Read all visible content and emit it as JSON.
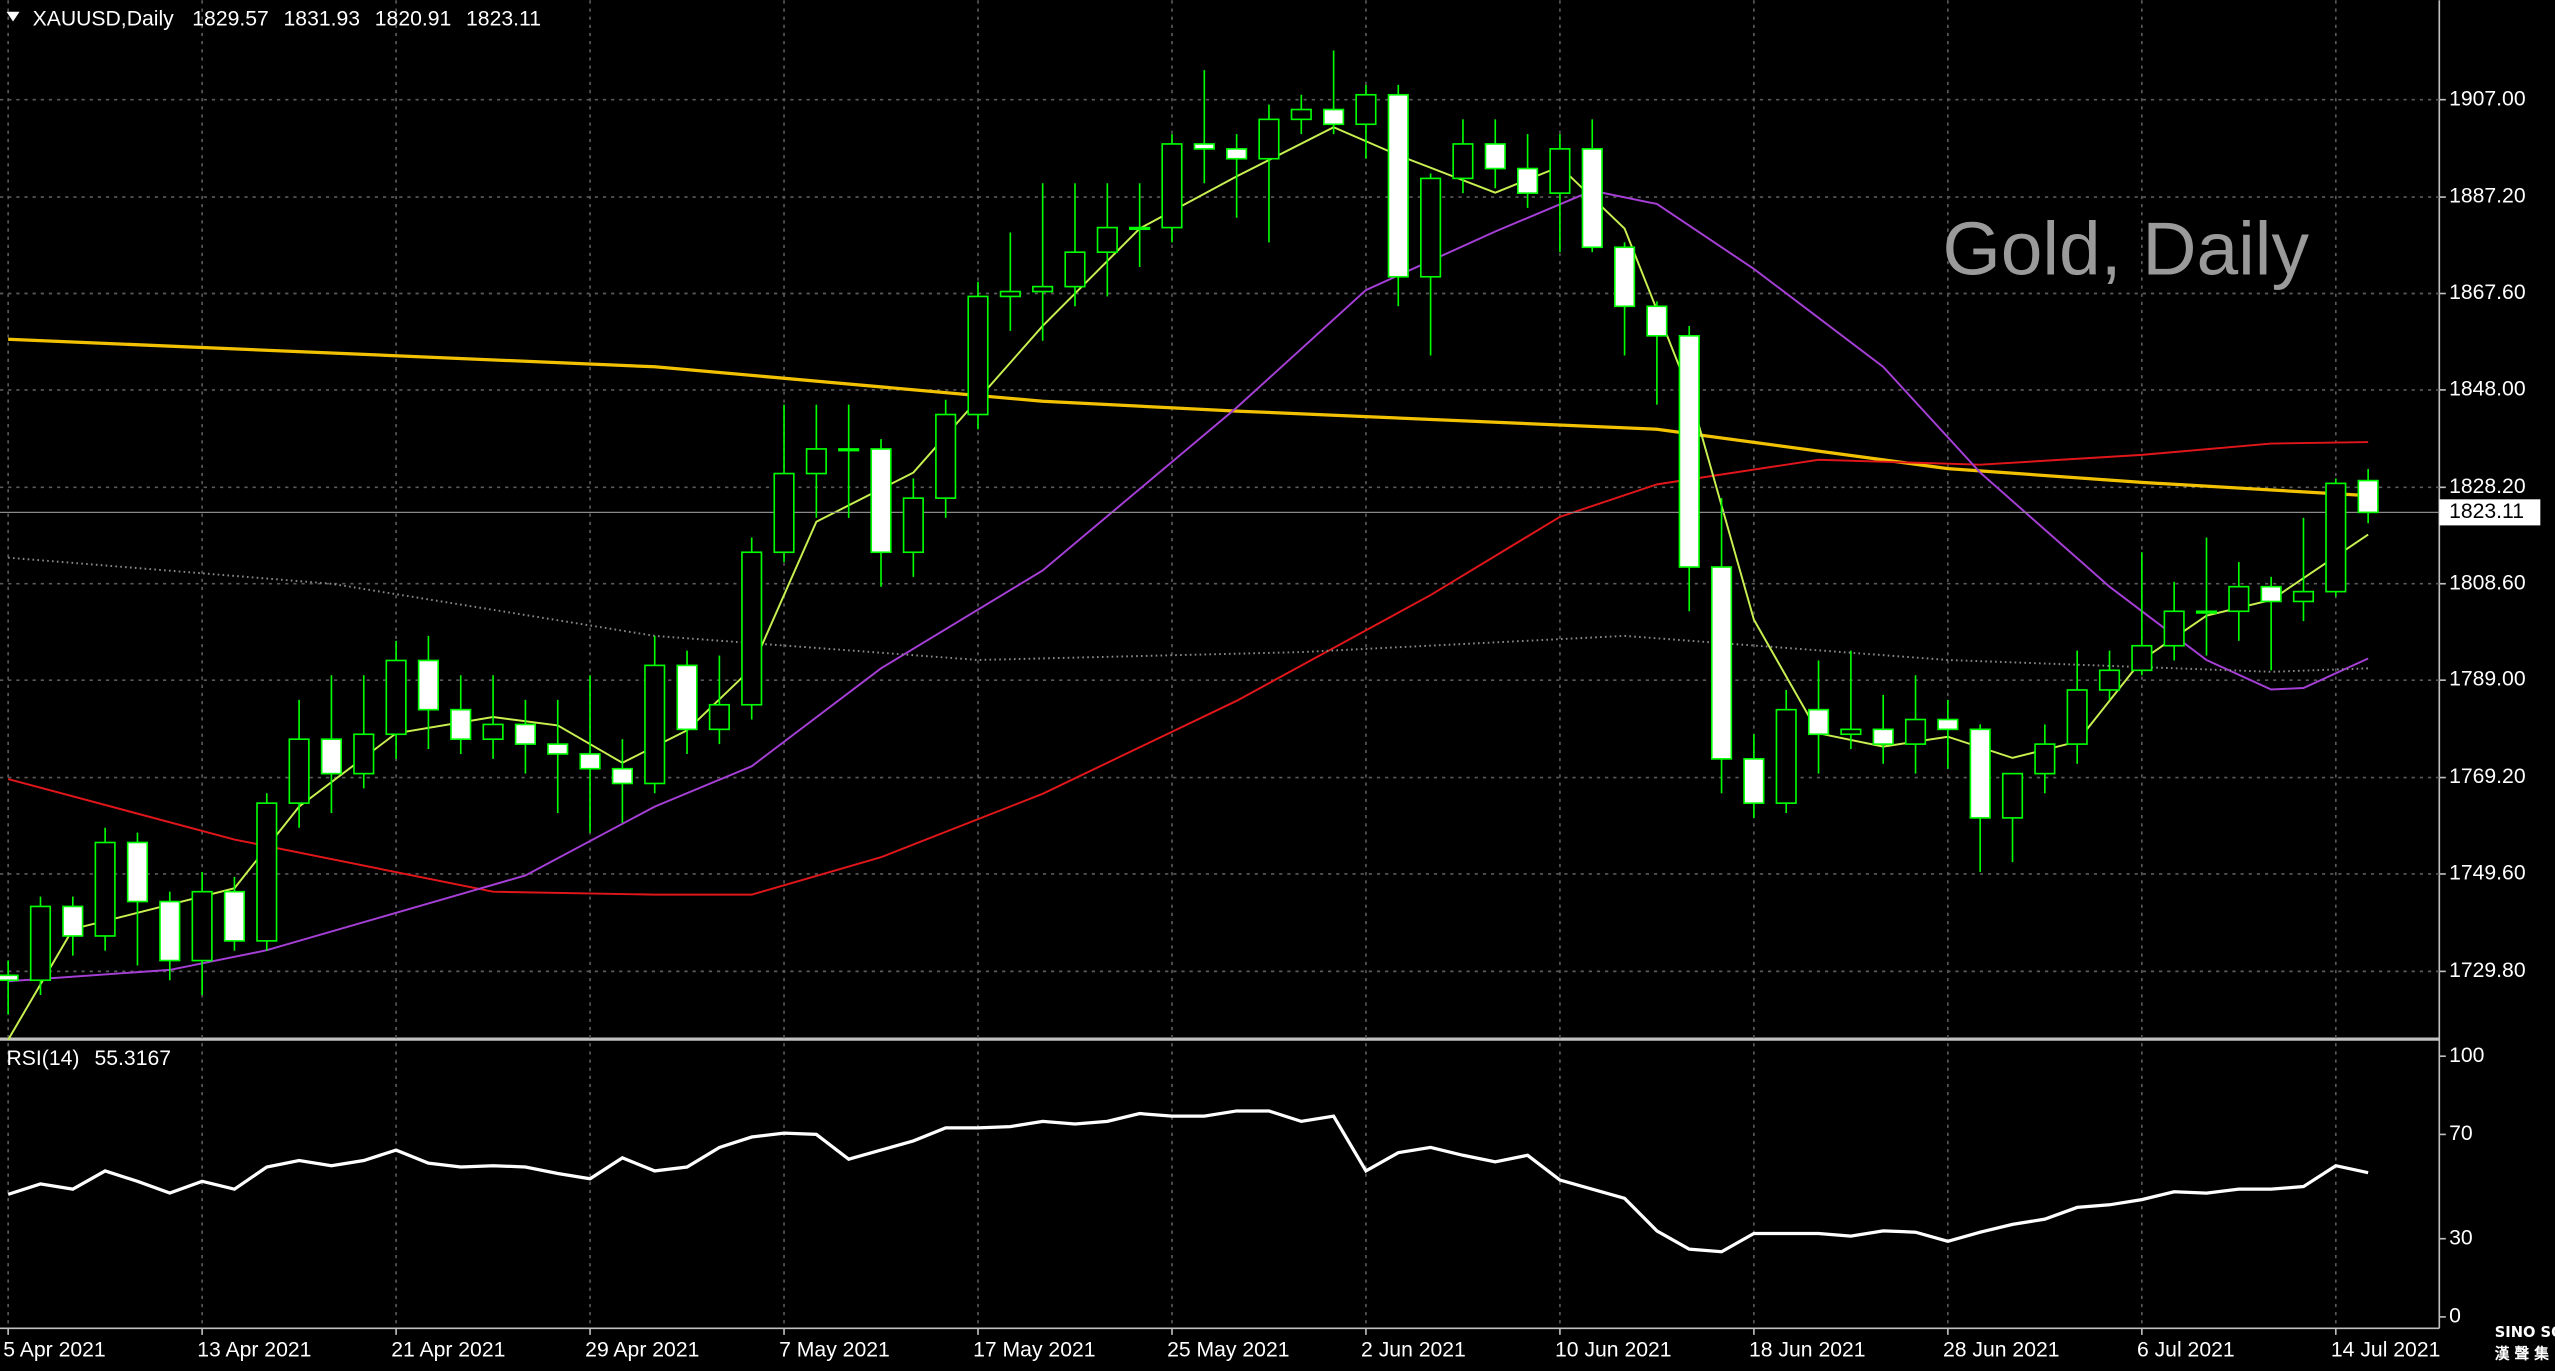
{
  "chart_data": [
    {
      "type": "candlestick",
      "symbol": "XAUUSD,Daily",
      "watermark": "Gold, Daily",
      "logo": "SINO SOUND",
      "logo_sub": "漢 聲 集 團",
      "categories": [
        "5 Apr 2021",
        null,
        null,
        null,
        null,
        null,
        "13 Apr 2021",
        null,
        null,
        null,
        null,
        null,
        "21 Apr 2021",
        null,
        null,
        null,
        null,
        null,
        "29 Apr 2021",
        null,
        null,
        null,
        null,
        null,
        "7 May 2021",
        null,
        null,
        null,
        null,
        null,
        "17 May 2021",
        null,
        null,
        null,
        null,
        null,
        "25 May 2021",
        null,
        null,
        null,
        null,
        null,
        "2 Jun 2021",
        null,
        null,
        null,
        null,
        null,
        "10 Jun 2021",
        null,
        null,
        null,
        null,
        null,
        "18 Jun 2021",
        null,
        null,
        null,
        null,
        null,
        "28 Jun 2021",
        null,
        null,
        null,
        null,
        null,
        "6 Jul 2021",
        null,
        null,
        null,
        null,
        null,
        "14 Jul 2021",
        null
      ],
      "open": [
        1729,
        1728,
        1743,
        1737,
        1756,
        1744,
        1732,
        1746,
        1736,
        1764,
        1777,
        1770,
        1778,
        1793,
        1783,
        1777,
        1780,
        1776,
        1774,
        1771,
        1768,
        1792,
        1779,
        1784,
        1815,
        1831,
        1836,
        1836,
        1815,
        1826,
        1843,
        1867,
        1868,
        1869,
        1876,
        1881,
        1881,
        1898,
        1897,
        1895,
        1903,
        1905,
        1902,
        1908,
        1871,
        1891,
        1898,
        1893,
        1888,
        1897,
        1877,
        1865,
        1859,
        1812,
        1773,
        1764,
        1783,
        1778,
        1779,
        1776,
        1781,
        1779,
        1761,
        1770,
        1776,
        1787,
        1791,
        1796,
        1803,
        1803,
        1808,
        1805,
        1807,
        1829.57
      ],
      "high": [
        1732,
        1745,
        1745,
        1759,
        1758,
        1746,
        1750,
        1749,
        1766,
        1785,
        1790,
        1790,
        1797,
        1798,
        1790,
        1790,
        1785,
        1785,
        1790,
        1777,
        1798,
        1795,
        1794,
        1818,
        1845,
        1845,
        1845,
        1838,
        1830,
        1846,
        1870,
        1880,
        1890,
        1890,
        1890,
        1890,
        1900,
        1913,
        1900,
        1906,
        1908,
        1917,
        1910,
        1910,
        1892,
        1903,
        1903,
        1900,
        1900,
        1903,
        1878,
        1866,
        1861,
        1826,
        1778,
        1787,
        1793,
        1795,
        1786,
        1790,
        1785,
        1780,
        1770,
        1780,
        1795,
        1795,
        1815,
        1809,
        1818,
        1813,
        1810,
        1822,
        1830,
        1831.93
      ],
      "low": [
        1721,
        1725,
        1733,
        1734,
        1731,
        1728,
        1725,
        1734,
        1734,
        1759,
        1762,
        1767,
        1773,
        1775,
        1774,
        1773,
        1770,
        1762,
        1758,
        1760,
        1766,
        1774,
        1776,
        1781,
        1813,
        1822,
        1822,
        1808,
        1810,
        1822,
        1840,
        1860,
        1858,
        1865,
        1867,
        1873,
        1878,
        1890,
        1883,
        1878,
        1900,
        1900,
        1895,
        1865,
        1855,
        1888,
        1889,
        1885,
        1876,
        1876,
        1855,
        1845,
        1803,
        1766,
        1761,
        1762,
        1770,
        1775,
        1772,
        1770,
        1771,
        1750,
        1752,
        1766,
        1772,
        1785,
        1790,
        1793,
        1794,
        1797,
        1791,
        1801,
        1806,
        1820.91
      ],
      "close": [
        1728,
        1743,
        1737,
        1756,
        1744,
        1732,
        1746,
        1736,
        1764,
        1777,
        1770,
        1778,
        1793,
        1783,
        1777,
        1780,
        1776,
        1774,
        1771,
        1768,
        1792,
        1779,
        1784,
        1815,
        1831,
        1836,
        1836,
        1815,
        1826,
        1843,
        1867,
        1868,
        1869,
        1876,
        1881,
        1881,
        1898,
        1897,
        1895,
        1903,
        1905,
        1902,
        1908,
        1871,
        1891,
        1898,
        1893,
        1888,
        1897,
        1877,
        1865,
        1859,
        1812,
        1773,
        1764,
        1783,
        1778,
        1779,
        1776,
        1781,
        1779,
        1761,
        1770,
        1776,
        1787,
        1791,
        1796,
        1803,
        1803,
        1808,
        1805,
        1807,
        1829,
        1823.11
      ],
      "ylim": [
        1716.2,
        1927.2
      ],
      "yticks": [
        {
          "value": 1729.8,
          "label": "1729.80"
        },
        {
          "value": 1749.6,
          "label": "1749.60"
        },
        {
          "value": 1769.2,
          "label": "1769.20"
        },
        {
          "value": 1789,
          "label": "1789.00"
        },
        {
          "value": 1808.6,
          "label": "1808.60"
        },
        {
          "value": 1828.2,
          "label": "1828.20"
        },
        {
          "value": 1848,
          "label": "1848.00"
        },
        {
          "value": 1867.6,
          "label": "1867.60"
        },
        {
          "value": 1887.2,
          "label": "1887.20"
        },
        {
          "value": 1907,
          "label": "1907.00"
        }
      ],
      "grid": true,
      "up_color": "#000000",
      "down_color": "#ffffff",
      "wick_color": "#00ff00",
      "last_price_line": true,
      "overlays": [
        {
          "color": "#f2c200",
          "dashed": false,
          "x": [
            0,
            20,
            32,
            38,
            51,
            60,
            66,
            73
          ],
          "values": [
            1858.3,
            1852.7,
            1845.7,
            1843.7,
            1840,
            1832,
            1829.2,
            1826.5
          ]
        },
        {
          "color": "#e0161b",
          "dashed": false,
          "x": [
            0,
            7,
            15,
            20,
            23,
            27,
            32,
            38,
            44,
            48,
            51,
            56,
            61,
            66,
            70,
            73
          ],
          "values": [
            1768.9,
            1756.6,
            1746,
            1745.4,
            1745.4,
            1753,
            1765.9,
            1784.8,
            1806.3,
            1822.2,
            1828.8,
            1833.8,
            1832.8,
            1834.8,
            1837.1,
            1837.4
          ]
        },
        {
          "color": "#a53fd6",
          "dashed": false,
          "x": [
            0,
            5,
            8,
            12,
            16,
            20,
            23,
            27,
            32,
            38,
            42,
            46,
            49,
            51,
            54,
            58,
            61,
            65,
            68,
            70,
            71,
            73
          ],
          "values": [
            1727.8,
            1730.1,
            1734.1,
            1741.7,
            1749.3,
            1763.3,
            1771.5,
            1791.4,
            1811.3,
            1844.4,
            1868.3,
            1880.2,
            1888.5,
            1885.8,
            1872.6,
            1852.7,
            1831.2,
            1808,
            1793.1,
            1787.1,
            1787.4,
            1793.4
          ]
        },
        {
          "color": "#c8f050",
          "dashed": false,
          "x": [
            0,
            2,
            4,
            7,
            9,
            12,
            15,
            17,
            19,
            21,
            23,
            25,
            28,
            30,
            32,
            35,
            38,
            41,
            43,
            46,
            48,
            50,
            52,
            54,
            56,
            58,
            60,
            62,
            64,
            66,
            68,
            70,
            73
          ],
          "values": [
            1715.9,
            1738.4,
            1741.7,
            1746.7,
            1763.3,
            1778.2,
            1781.5,
            1779.8,
            1772.2,
            1778.8,
            1791.4,
            1821.2,
            1831.2,
            1846.1,
            1861,
            1880.8,
            1891.4,
            1901.4,
            1895.7,
            1888.1,
            1893.4,
            1880.8,
            1847.7,
            1801.3,
            1778.2,
            1775.5,
            1777.5,
            1773.2,
            1776.5,
            1793.1,
            1802.1,
            1805.3,
            1818.6
          ]
        },
        {
          "color": "#8a8a8a",
          "dashed": true,
          "x": [
            0,
            10,
            20,
            30,
            40,
            50,
            60,
            70,
            73
          ],
          "values": [
            1813.9,
            1808.6,
            1798,
            1793.1,
            1794.7,
            1798,
            1793.1,
            1790.7,
            1791.4
          ]
        }
      ]
    },
    {
      "type": "line",
      "title": "RSI(14)",
      "color": "#ffffff",
      "ylim": [
        0,
        100
      ],
      "yticks": [
        0,
        30,
        70,
        100
      ],
      "values": [
        47,
        51,
        49,
        56,
        52,
        47.5,
        52,
        49,
        57.5,
        60,
        58,
        60,
        64,
        59,
        57.5,
        58,
        57.5,
        55,
        53,
        61,
        56,
        57.5,
        65,
        69,
        70.5,
        70,
        60.5,
        64,
        67.5,
        72.5,
        72.5,
        73,
        75,
        74,
        75,
        78,
        77,
        77,
        79,
        79,
        75,
        77,
        56,
        63,
        65,
        62,
        59.5,
        62,
        52.5,
        49,
        45.5,
        33,
        26,
        25,
        32,
        32,
        32,
        31,
        33,
        32.5,
        29,
        32.5,
        35.5,
        37.5,
        42,
        43,
        45,
        48,
        47.5,
        49,
        49,
        50,
        58,
        55.3167
      ]
    }
  ]
}
